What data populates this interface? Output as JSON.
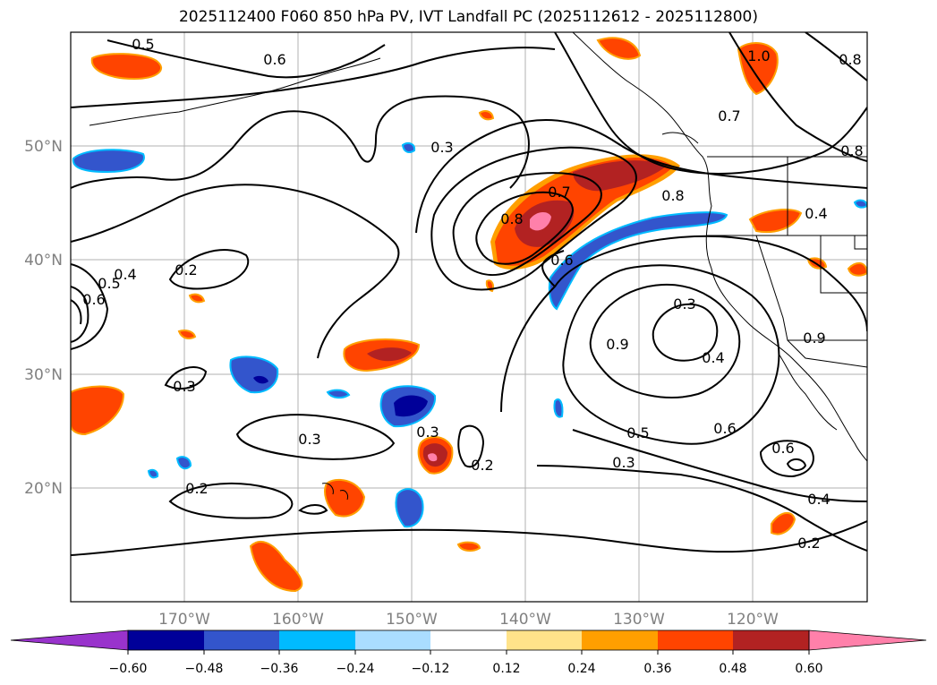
{
  "title": "2025112400 F060 850 hPa PV, IVT Landfall PC (2025112612 - 2025112800)",
  "lat_ticks": [
    "50°N",
    "40°N",
    "30°N",
    "20°N"
  ],
  "lon_ticks": [
    "170°W",
    "160°W",
    "150°W",
    "140°W",
    "130°W",
    "120°W"
  ],
  "colorbar": {
    "labels": [
      "−0.60",
      "−0.48",
      "−0.36",
      "−0.24",
      "−0.12",
      "0.12",
      "0.24",
      "0.36",
      "0.48",
      "0.60"
    ],
    "colors": [
      "#9933cc",
      "#000099",
      "#3355cc",
      "#00bbff",
      "#aaddff",
      "#ffffff",
      "#ffe38a",
      "#ff9f00",
      "#ff4400",
      "#b22222",
      "#ff80aa"
    ]
  },
  "contour_labels": [
    "0.5",
    "0.6",
    "1.0",
    "0.8",
    "0.3",
    "0.7",
    "0.8",
    "0.7",
    "0.8",
    "0.8",
    "0.4",
    "0.2",
    "0.4",
    "0.5",
    "0.6",
    "0.6",
    "0.3",
    "0.9",
    "0.4",
    "0.5",
    "0.6",
    "0.3",
    "0.6",
    "0.3",
    "0.3",
    "0.3",
    "0.2",
    "0.2",
    "0.4",
    "0.2",
    "0.9"
  ],
  "colors": {
    "positive_core": "#ff4400",
    "positive_edge": "#ff9f00",
    "positive_strong": "#b22222",
    "positive_peak": "#ff80aa",
    "negative": "#3355cc",
    "negative_strong": "#000099",
    "negative_edge": "#00bbff",
    "grid": "#b0b0b0",
    "tick_text": "#808080"
  }
}
